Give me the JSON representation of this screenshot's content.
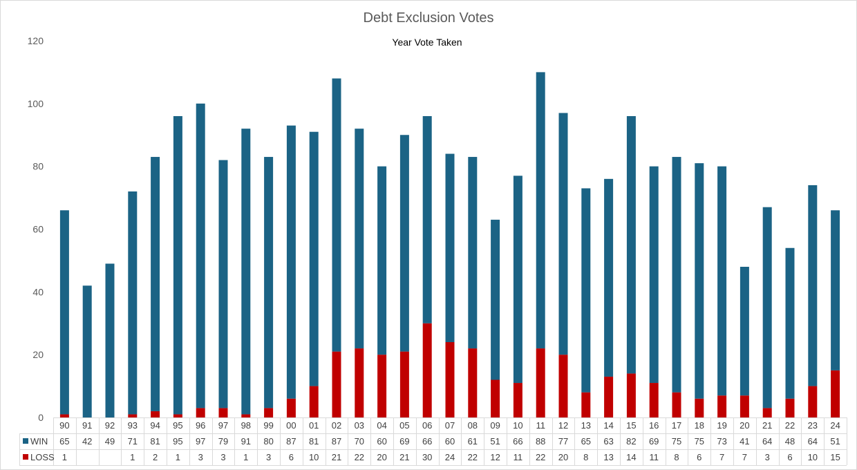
{
  "chart_data": {
    "type": "bar",
    "stacked": true,
    "title": "Debt Exclusion Votes",
    "xlabel": "Year Vote Taken",
    "ylabel": "",
    "ylim": [
      0,
      120
    ],
    "yticks": [
      0,
      20,
      40,
      60,
      80,
      100,
      120
    ],
    "grid": false,
    "legend": "data table, left of rows",
    "categories": [
      "90",
      "91",
      "92",
      "93",
      "94",
      "95",
      "96",
      "97",
      "98",
      "99",
      "00",
      "01",
      "02",
      "03",
      "04",
      "05",
      "06",
      "07",
      "08",
      "09",
      "10",
      "11",
      "12",
      "13",
      "14",
      "15",
      "16",
      "17",
      "18",
      "19",
      "20",
      "21",
      "22",
      "23",
      "24"
    ],
    "series": [
      {
        "name": "LOSS",
        "color": "#c00000",
        "values": [
          1,
          null,
          null,
          1,
          2,
          1,
          3,
          3,
          1,
          3,
          6,
          10,
          21,
          22,
          20,
          21,
          30,
          24,
          22,
          12,
          11,
          22,
          20,
          8,
          13,
          14,
          11,
          8,
          6,
          7,
          7,
          3,
          6,
          10,
          15
        ]
      },
      {
        "name": "WIN",
        "color": "#1b6385",
        "values": [
          65,
          42,
          49,
          71,
          81,
          95,
          97,
          79,
          91,
          80,
          87,
          81,
          87,
          70,
          60,
          69,
          66,
          60,
          61,
          51,
          66,
          88,
          77,
          65,
          63,
          82,
          69,
          75,
          75,
          73,
          41,
          64,
          48,
          64,
          51
        ]
      }
    ]
  }
}
